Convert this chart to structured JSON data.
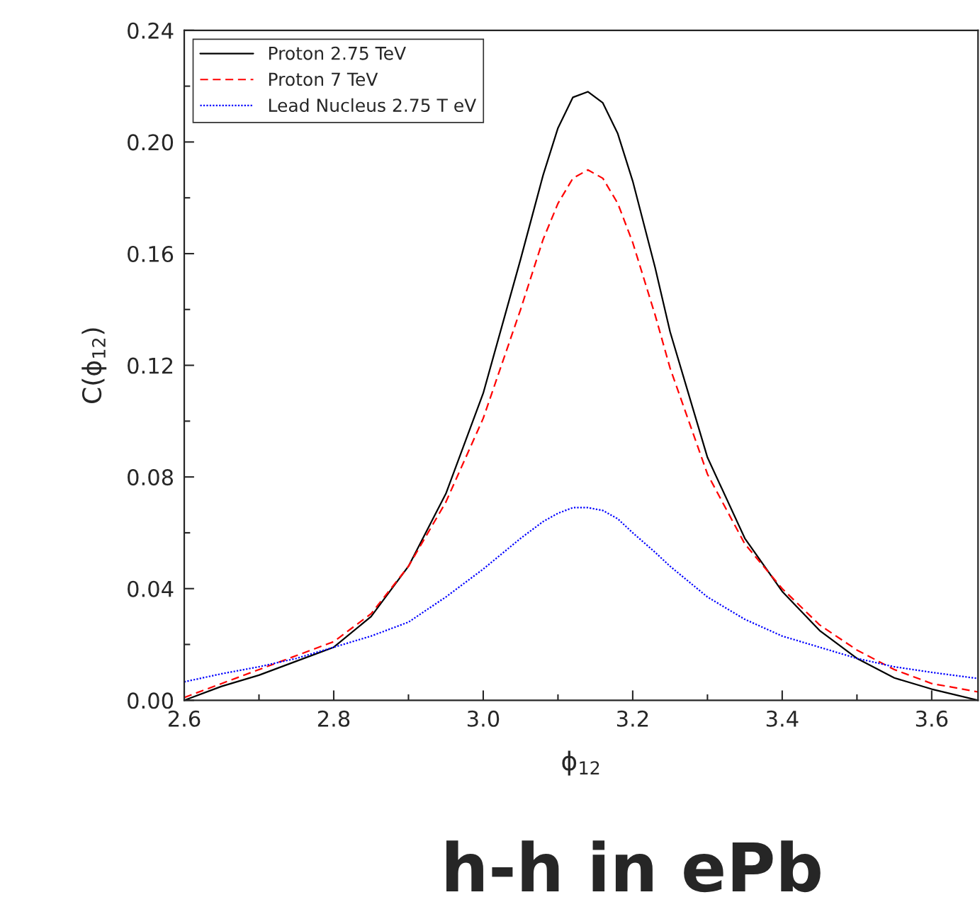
{
  "chart_data": {
    "type": "line",
    "title": "h-h in ePb",
    "xlabel": "ϕ$_{12}$",
    "ylabel": "C(ϕ$_{12}$)",
    "x": [
      2.6,
      2.65,
      2.7,
      2.75,
      2.8,
      2.85,
      2.9,
      2.95,
      3.0,
      3.05,
      3.08,
      3.1,
      3.12,
      3.14,
      3.16,
      3.18,
      3.2,
      3.23,
      3.25,
      3.3,
      3.35,
      3.4,
      3.45,
      3.5,
      3.55,
      3.6,
      3.662
    ],
    "series": [
      {
        "name": "Proton 2.75 TeV",
        "color": "#000000",
        "line_style": "solid",
        "values": [
          0.0,
          0.005,
          0.009,
          0.014,
          0.019,
          0.03,
          0.048,
          0.074,
          0.11,
          0.158,
          0.188,
          0.205,
          0.216,
          0.218,
          0.214,
          0.203,
          0.186,
          0.155,
          0.132,
          0.087,
          0.058,
          0.039,
          0.025,
          0.015,
          0.008,
          0.004,
          0.0
        ]
      },
      {
        "name": "Proton 7 TeV",
        "color": "#ff0000",
        "line_style": "dashed",
        "values": [
          0.001,
          0.006,
          0.011,
          0.016,
          0.021,
          0.031,
          0.048,
          0.071,
          0.101,
          0.14,
          0.165,
          0.178,
          0.187,
          0.19,
          0.187,
          0.178,
          0.164,
          0.138,
          0.119,
          0.081,
          0.056,
          0.04,
          0.027,
          0.018,
          0.011,
          0.006,
          0.003
        ]
      },
      {
        "name": "Lead Nucleus 2.75 T eV",
        "color": "#0000ff",
        "line_style": "dotted",
        "values": [
          0.0066,
          0.0095,
          0.012,
          0.015,
          0.019,
          0.023,
          0.028,
          0.037,
          0.047,
          0.058,
          0.064,
          0.067,
          0.069,
          0.069,
          0.068,
          0.065,
          0.06,
          0.053,
          0.048,
          0.037,
          0.029,
          0.023,
          0.019,
          0.015,
          0.012,
          0.01,
          0.0078
        ]
      }
    ],
    "xlim": [
      2.6,
      3.662
    ],
    "xticks": [
      {
        "value": 2.6,
        "label": "2.6"
      },
      {
        "value": 2.8,
        "label": "2.8"
      },
      {
        "value": 3.0,
        "label": "3.0"
      },
      {
        "value": 3.2,
        "label": "3.2"
      },
      {
        "value": 3.4,
        "label": "3.4"
      },
      {
        "value": 3.6,
        "label": "3.6"
      }
    ],
    "ylim": [
      0,
      0.24
    ],
    "yticks": [
      {
        "value": 0,
        "label": "0.00"
      },
      {
        "value": 0.04,
        "label": "0.04"
      },
      {
        "value": 0.08,
        "label": "0.08"
      },
      {
        "value": 0.12,
        "label": "0.12"
      },
      {
        "value": 0.16,
        "label": "0.16"
      },
      {
        "value": 0.2,
        "label": "0.20"
      },
      {
        "value": 0.24,
        "label": "0.24"
      }
    ],
    "grid": false,
    "legend": "top left",
    "marker": "none"
  }
}
